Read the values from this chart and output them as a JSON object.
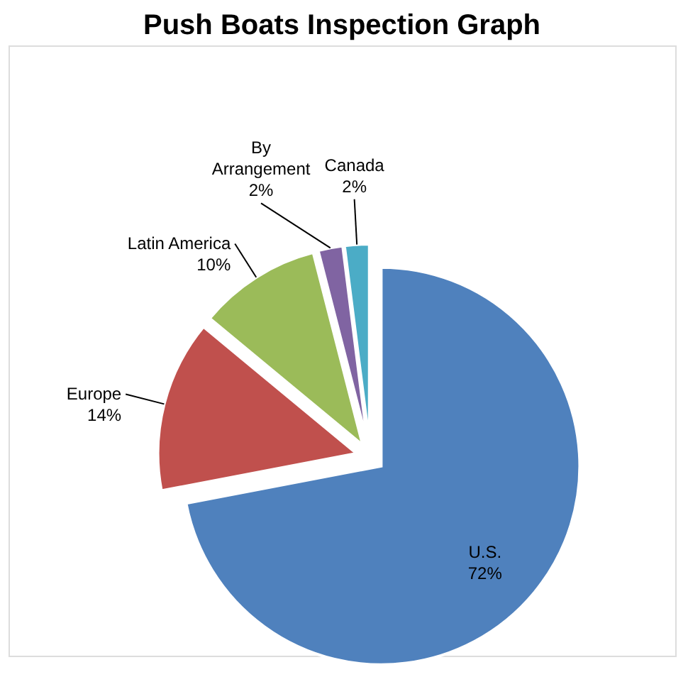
{
  "chart_data": {
    "type": "pie",
    "title": "Push Boats Inspection Graph",
    "categories": [
      "U.S.",
      "Europe",
      "Latin America",
      "By Arrangement",
      "Canada"
    ],
    "values": [
      72,
      14,
      10,
      2,
      2
    ],
    "value_labels": [
      "72%",
      "14%",
      "10%",
      "2%",
      "2%"
    ],
    "colors": [
      "#4f81bd",
      "#c0504d",
      "#9bbb59",
      "#8064a2",
      "#4bacc6"
    ]
  }
}
